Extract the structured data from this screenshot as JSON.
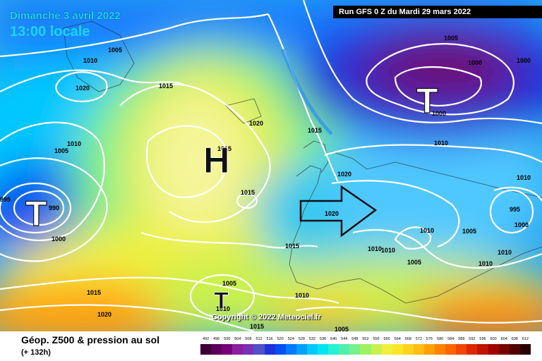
{
  "header": {
    "date": "Dimanche 3 avril 2022",
    "time": "13:00 locale",
    "run": "Run GFS 0 Z du Mardi 29 mars 2022"
  },
  "copyright": "Copyright © 2022 Meteociel.fr",
  "footer": {
    "title": "Géop. Z500 & pression au sol",
    "subtitle": "(+ 132h)"
  },
  "pressure_centers": [
    {
      "symbol": "H",
      "type": "high",
      "color": "#111111"
    },
    {
      "symbol": "T",
      "type": "low",
      "color": "#ffffff"
    },
    {
      "symbol": "T",
      "type": "low",
      "color": "#ffffff"
    },
    {
      "symbol": "T",
      "type": "low",
      "color": "#111111"
    }
  ],
  "isobar_labels": [
    "1005",
    "1010",
    "1020",
    "1015",
    "1010",
    "1005",
    "1020",
    "1015",
    "995",
    "990",
    "1000",
    "1015",
    "1015",
    "1020",
    "1015",
    "1015",
    "1020",
    "1010",
    "1010",
    "1005",
    "1015",
    "1020",
    "1005",
    "1000",
    "1000",
    "1000",
    "1010",
    "1005",
    "1010",
    "995",
    "1000",
    "1010",
    "1010",
    "1010",
    "1010",
    "1005",
    "1010",
    "1005"
  ],
  "scale": {
    "labels": [
      "492",
      "496",
      "500",
      "504",
      "508",
      "512",
      "516",
      "520",
      "524",
      "528",
      "532",
      "536",
      "540",
      "544",
      "548",
      "552",
      "556",
      "560",
      "564",
      "568",
      "572",
      "576",
      "580",
      "584",
      "588",
      "592",
      "596",
      "600",
      "604",
      "608",
      "612"
    ],
    "colors": [
      "#3d0036",
      "#5a005a",
      "#780078",
      "#8c1ea0",
      "#7832b4",
      "#5050c8",
      "#1e32dc",
      "#0050f0",
      "#0078ff",
      "#00a0ff",
      "#00c8ff",
      "#00e6f0",
      "#28f0d2",
      "#50f0aa",
      "#78f08c",
      "#a0f064",
      "#c8f050",
      "#f0f03c",
      "#fae628",
      "#ffd21e",
      "#ffbe14",
      "#ffa00a",
      "#ff8200",
      "#ff6400",
      "#f04600",
      "#dc2800",
      "#be1400",
      "#a00000",
      "#780000",
      "#500000",
      "#280000"
    ]
  },
  "overlay_arrow": {
    "direction": "east",
    "color": "#111111"
  }
}
